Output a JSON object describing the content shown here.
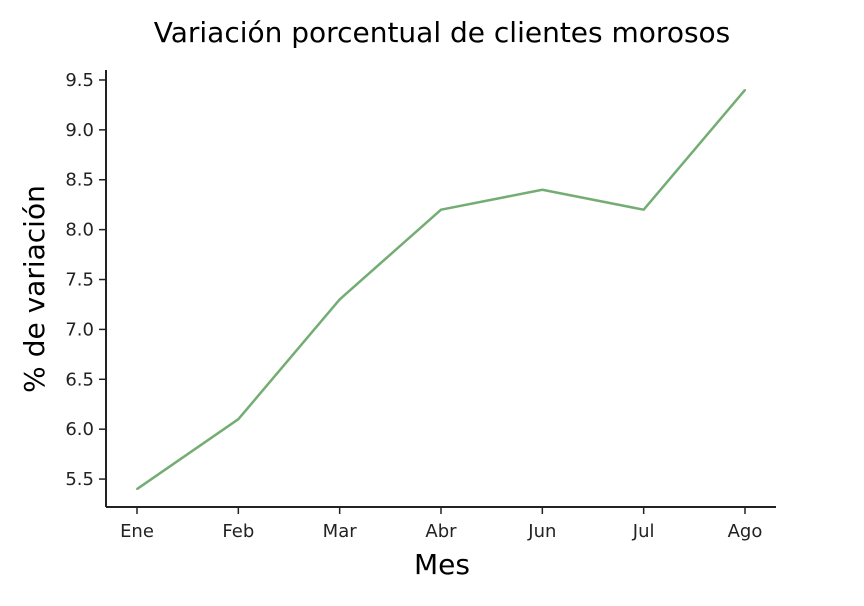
{
  "chart_data": {
    "type": "line",
    "title": "Variación porcentual de clientes morosos",
    "xlabel": "Mes",
    "ylabel": "% de variación",
    "categories": [
      "Ene",
      "Feb",
      "Mar",
      "Abr",
      "Jun",
      "Jul",
      "Ago"
    ],
    "series": [
      {
        "values": [
          5.4,
          6.1,
          7.3,
          8.2,
          8.4,
          8.2,
          9.4
        ]
      }
    ],
    "yticks": [
      "5.5",
      "6.0",
      "6.5",
      "7.0",
      "7.5",
      "8.0",
      "8.5",
      "9.0",
      "9.5"
    ],
    "ylim": [
      5.22,
      9.6
    ],
    "grid": false,
    "line_color": "#74ad74",
    "spines": "left-bottom"
  }
}
